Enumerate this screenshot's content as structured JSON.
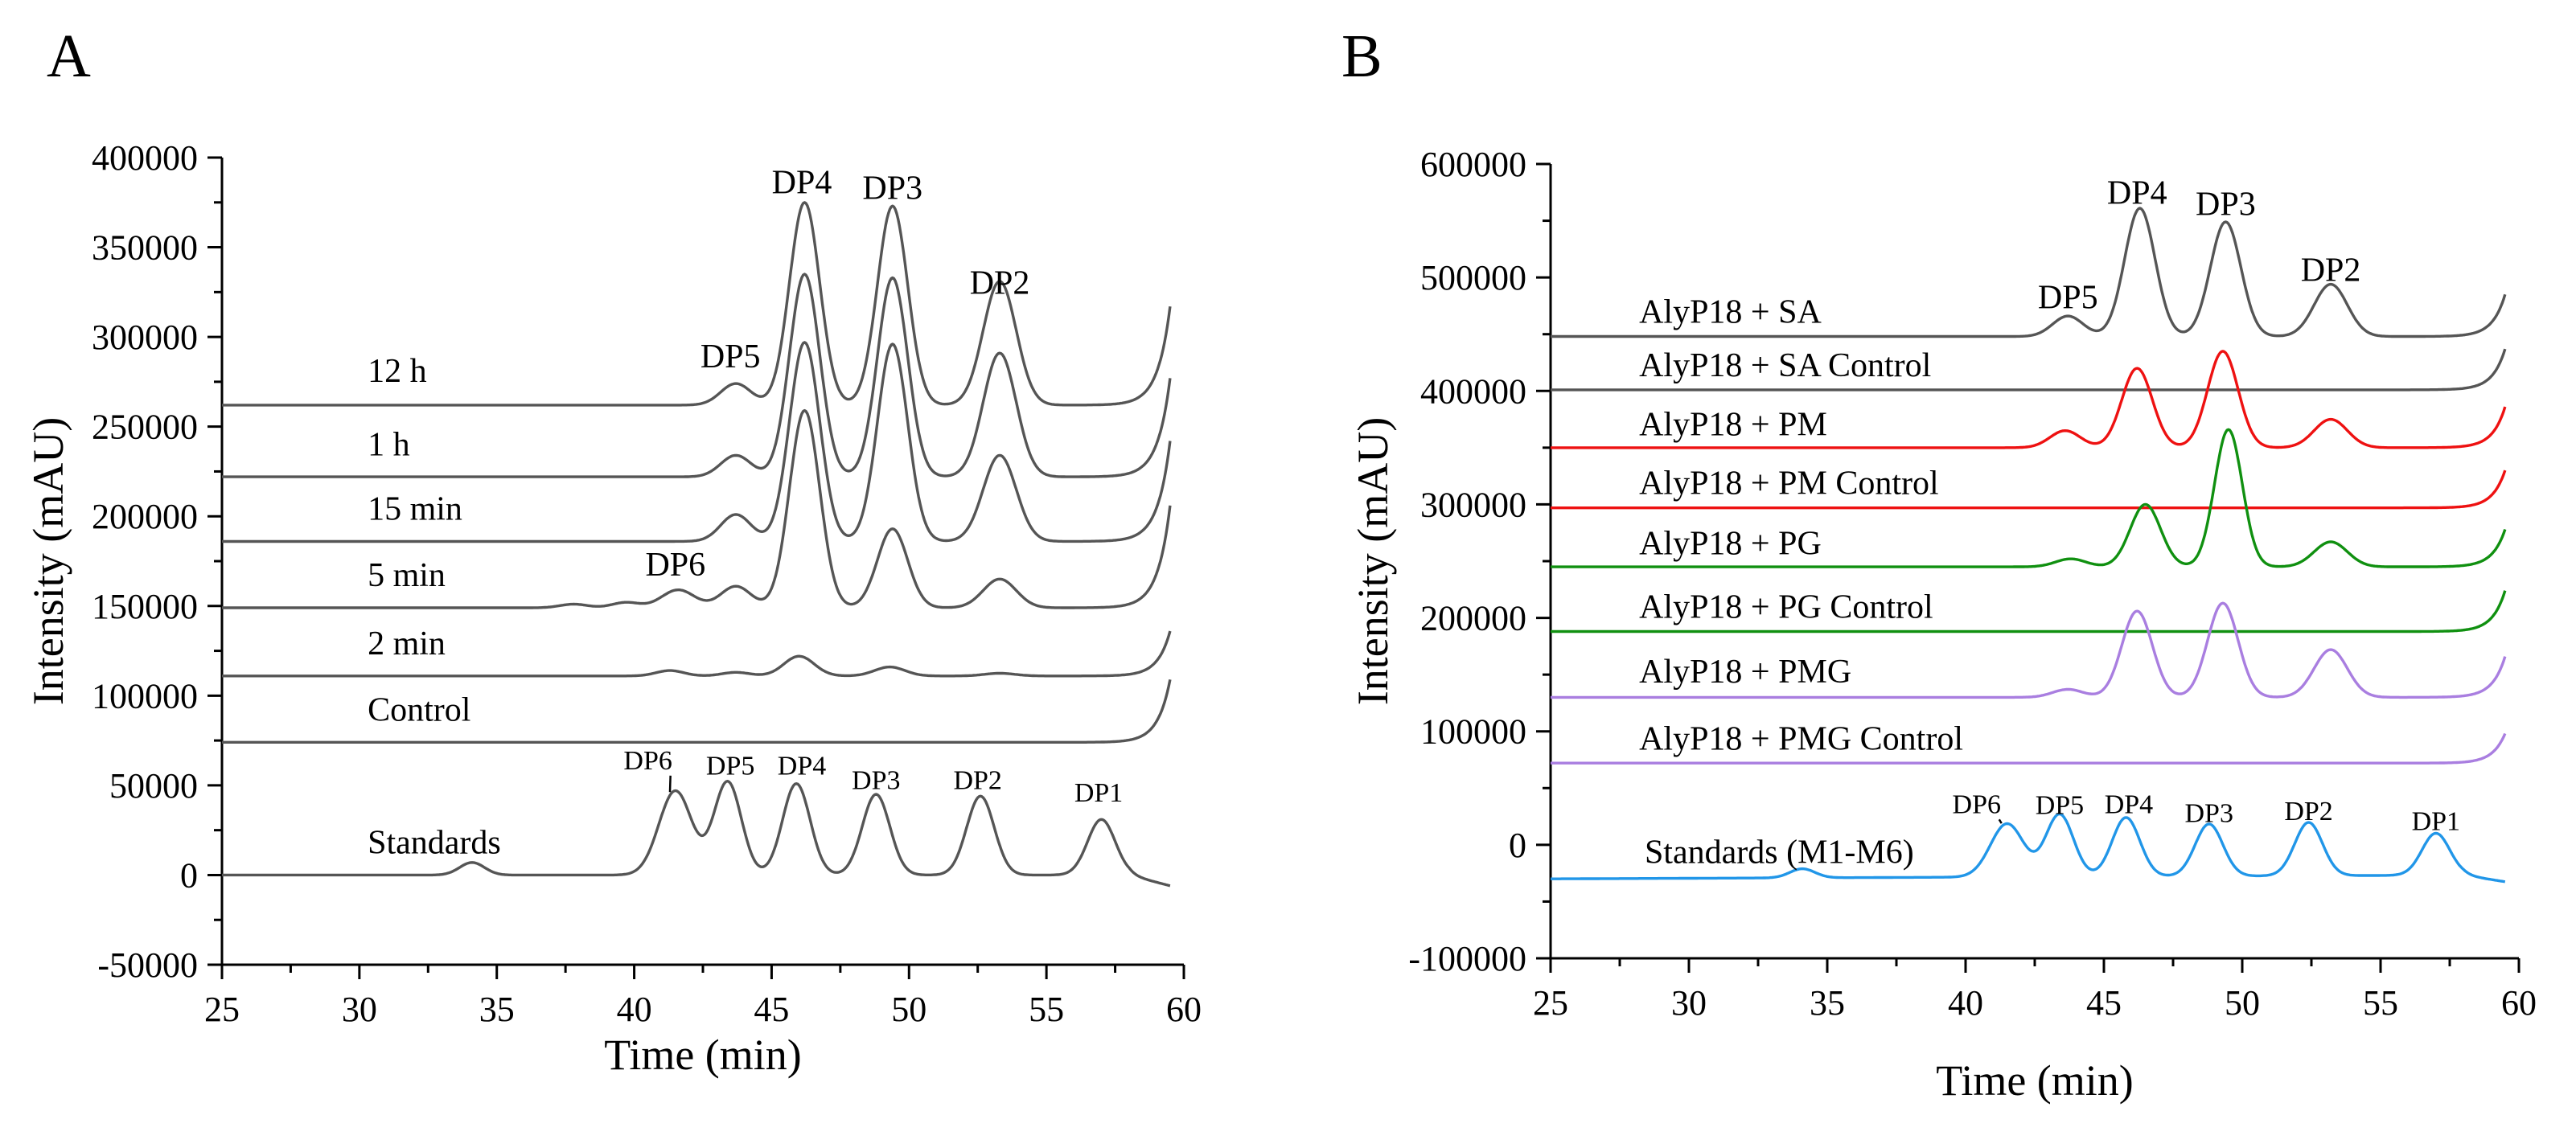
{
  "panels": [
    "A",
    "B"
  ],
  "chart_data": [
    {
      "panel": "A",
      "type": "line",
      "xlabel": "Time (min)",
      "ylabel": "Intensity (mAU)",
      "xlim": [
        25,
        60
      ],
      "ylim": [
        -50000,
        400000
      ],
      "xticks": [
        25,
        30,
        35,
        40,
        45,
        50,
        55,
        60
      ],
      "yticks": [
        -50000,
        0,
        50000,
        100000,
        150000,
        200000,
        250000,
        300000,
        350000,
        400000
      ],
      "x_tick_labels": [
        "25",
        "30",
        "35",
        "40",
        "45",
        "50",
        "55",
        "60"
      ],
      "y_tick_labels": [
        "-50000",
        "0",
        "50000",
        "100000",
        "150000",
        "200000",
        "250000",
        "300000",
        "350000",
        "400000"
      ],
      "series": [
        {
          "name": "12 h",
          "color": "#555555",
          "baseline": 262000,
          "end_rise": 55000,
          "peaks": [
            [
              43.7,
              12000,
              0.55
            ],
            [
              46.2,
              113000,
              0.55
            ],
            [
              49.4,
              111000,
              0.55
            ],
            [
              53.3,
              69000,
              0.6
            ]
          ]
        },
        {
          "name": "1 h",
          "color": "#555555",
          "baseline": 222000,
          "end_rise": 55000,
          "peaks": [
            [
              43.7,
              12000,
              0.55
            ],
            [
              46.2,
              113000,
              0.55
            ],
            [
              49.4,
              111000,
              0.55
            ],
            [
              53.3,
              69000,
              0.6
            ]
          ]
        },
        {
          "name": "15 min",
          "color": "#555555",
          "baseline": 186000,
          "end_rise": 56000,
          "peaks": [
            [
              43.7,
              15000,
              0.55
            ],
            [
              46.2,
              111000,
              0.55
            ],
            [
              49.4,
              110000,
              0.55
            ],
            [
              53.3,
              48000,
              0.6
            ]
          ]
        },
        {
          "name": "5 min",
          "color": "#555555",
          "baseline": 149000,
          "end_rise": 57000,
          "peaks": [
            [
              37.8,
              2000,
              0.5
            ],
            [
              39.7,
              3000,
              0.5
            ],
            [
              41.6,
              10000,
              0.6
            ],
            [
              43.7,
              12000,
              0.55
            ],
            [
              46.2,
              110000,
              0.55
            ],
            [
              49.4,
              44000,
              0.55
            ],
            [
              53.3,
              16000,
              0.6
            ]
          ]
        },
        {
          "name": "2 min",
          "color": "#555555",
          "baseline": 111000,
          "end_rise": 25000,
          "peaks": [
            [
              41.3,
              3000,
              0.5
            ],
            [
              43.7,
              2000,
              0.5
            ],
            [
              46.0,
              11000,
              0.55
            ],
            [
              49.3,
              5000,
              0.55
            ],
            [
              53.3,
              1500,
              0.55
            ]
          ]
        },
        {
          "name": "Control",
          "color": "#555555",
          "baseline": 74000,
          "end_rise": 35000,
          "peaks": []
        },
        {
          "name": "Standards",
          "color": "#555555",
          "baseline": 0,
          "end_rise": 0,
          "end_drop": 2000,
          "peaks": [
            [
              34.1,
              7000,
              0.45
            ],
            [
              41.5,
              47000,
              0.6
            ],
            [
              43.4,
              52000,
              0.5
            ],
            [
              45.9,
              51000,
              0.5
            ],
            [
              48.8,
              45000,
              0.5
            ],
            [
              52.6,
              44000,
              0.5
            ],
            [
              57.0,
              31000,
              0.5
            ]
          ]
        }
      ],
      "trace_labels": [
        {
          "text": "12 h",
          "x": 30.3,
          "y": 275000
        },
        {
          "text": "1 h",
          "x": 30.3,
          "y": 234000
        },
        {
          "text": "15 min",
          "x": 30.3,
          "y": 198000
        },
        {
          "text": "5 min",
          "x": 30.3,
          "y": 161000
        },
        {
          "text": "2 min",
          "x": 30.3,
          "y": 123000
        },
        {
          "text": "Control",
          "x": 30.3,
          "y": 86000
        },
        {
          "text": "Standards",
          "x": 30.3,
          "y": 12000
        }
      ],
      "peak_labels": [
        {
          "text": "DP4",
          "x": 46.1,
          "y": 380000
        },
        {
          "text": "DP3",
          "x": 49.4,
          "y": 377000
        },
        {
          "text": "DP2",
          "x": 53.3,
          "y": 324000
        },
        {
          "text": "DP5",
          "x": 43.5,
          "y": 283000
        },
        {
          "text": "DP6",
          "x": 41.5,
          "y": 167000
        }
      ],
      "standard_peak_labels": [
        {
          "text": "DP6",
          "x": 40.5,
          "y": 59000
        },
        {
          "text": "DP5",
          "x": 43.5,
          "y": 56000
        },
        {
          "text": "DP4",
          "x": 46.1,
          "y": 56000
        },
        {
          "text": "DP3",
          "x": 48.8,
          "y": 48000
        },
        {
          "text": "DP2",
          "x": 52.5,
          "y": 48000
        },
        {
          "text": "DP1",
          "x": 56.9,
          "y": 41000
        }
      ]
    },
    {
      "panel": "B",
      "type": "line",
      "xlabel": "Time (min)",
      "ylabel": "Intensity (mAU)",
      "xlim": [
        25,
        60
      ],
      "ylim": [
        -100000,
        600000
      ],
      "xticks": [
        25,
        30,
        35,
        40,
        45,
        50,
        55,
        60
      ],
      "yticks": [
        -100000,
        0,
        100000,
        200000,
        300000,
        400000,
        500000,
        600000
      ],
      "x_tick_labels": [
        "25",
        "30",
        "35",
        "40",
        "45",
        "50",
        "55",
        "60"
      ],
      "y_tick_labels": [
        "-100000",
        "0",
        "100000",
        "200000",
        "300000",
        "400000",
        "500000",
        "600000"
      ],
      "series": [
        {
          "name": "AlyP18 + SA",
          "color": "#555555",
          "baseline": 448000,
          "end_rise": 37000,
          "peaks": [
            [
              43.7,
              18000,
              0.55
            ],
            [
              46.3,
              113000,
              0.55
            ],
            [
              49.4,
              101000,
              0.55
            ],
            [
              53.2,
              46000,
              0.6
            ]
          ]
        },
        {
          "name": "AlyP18 + SA Control",
          "color": "#555555",
          "baseline": 401000,
          "end_rise": 36000,
          "peaks": []
        },
        {
          "name": "AlyP18 + PM",
          "color": "#ee1111",
          "baseline": 350000,
          "end_rise": 36000,
          "peaks": [
            [
              43.6,
              15000,
              0.55
            ],
            [
              46.2,
              70000,
              0.55
            ],
            [
              49.3,
              85000,
              0.55
            ],
            [
              53.2,
              25000,
              0.6
            ]
          ]
        },
        {
          "name": "AlyP18 + PM Control",
          "color": "#ee1111",
          "baseline": 297000,
          "end_rise": 33000,
          "peaks": []
        },
        {
          "name": "AlyP18 + PG",
          "color": "#109010",
          "baseline": 245000,
          "end_rise": 33000,
          "peaks": [
            [
              43.8,
              7000,
              0.55
            ],
            [
              46.5,
              55000,
              0.55
            ],
            [
              49.5,
              121000,
              0.5
            ],
            [
              53.2,
              22000,
              0.6
            ]
          ]
        },
        {
          "name": "AlyP18 + PG Control",
          "color": "#109010",
          "baseline": 188000,
          "end_rise": 36000,
          "peaks": []
        },
        {
          "name": "AlyP18 + PMG",
          "color": "#a97ee0",
          "baseline": 130000,
          "end_rise": 36000,
          "peaks": [
            [
              43.7,
              7000,
              0.55
            ],
            [
              46.2,
              76000,
              0.55
            ],
            [
              49.3,
              83000,
              0.55
            ],
            [
              53.2,
              42000,
              0.6
            ]
          ]
        },
        {
          "name": "AlyP18 + PMG Control",
          "color": "#a97ee0",
          "baseline": 72000,
          "end_rise": 26000,
          "peaks": []
        },
        {
          "name": "Standards (M1-M6)",
          "color": "#2196e8",
          "baseline": -30000,
          "end_rise": 0,
          "end_drop": 2000,
          "drift": 3500,
          "peaks": [
            [
              34.1,
              8000,
              0.45
            ],
            [
              41.5,
              47000,
              0.6
            ],
            [
              43.4,
              55000,
              0.5
            ],
            [
              45.8,
              52000,
              0.5
            ],
            [
              48.8,
              46000,
              0.5
            ],
            [
              52.4,
              47000,
              0.5
            ],
            [
              57.0,
              37000,
              0.5
            ]
          ]
        }
      ],
      "trace_labels": [
        {
          "text": "AlyP18 + SA",
          "x": 28.2,
          "y": 460000
        },
        {
          "text": "AlyP18 + SA Control",
          "x": 28.2,
          "y": 413000
        },
        {
          "text": "AlyP18 + PM",
          "x": 28.2,
          "y": 361000
        },
        {
          "text": "AlyP18 + PM Control",
          "x": 28.2,
          "y": 309000
        },
        {
          "text": "AlyP18 + PG",
          "x": 28.2,
          "y": 256000
        },
        {
          "text": "AlyP18 + PG Control",
          "x": 28.2,
          "y": 200000
        },
        {
          "text": "AlyP18 + PMG",
          "x": 28.2,
          "y": 143000
        },
        {
          "text": "AlyP18 + PMG Control",
          "x": 28.2,
          "y": 84000
        },
        {
          "text": "Standards (M1-M6)",
          "x": 28.4,
          "y": -16000
        }
      ],
      "peak_labels": [
        {
          "text": "DP4",
          "x": 46.2,
          "y": 565000
        },
        {
          "text": "DP3",
          "x": 49.4,
          "y": 555000
        },
        {
          "text": "DP2",
          "x": 53.2,
          "y": 497000
        },
        {
          "text": "DP5",
          "x": 43.7,
          "y": 473000
        }
      ],
      "standard_peak_labels": [
        {
          "text": "DP6",
          "x": 40.4,
          "y": 28000
        },
        {
          "text": "DP5",
          "x": 43.4,
          "y": 27000
        },
        {
          "text": "DP4",
          "x": 45.9,
          "y": 28000
        },
        {
          "text": "DP3",
          "x": 48.8,
          "y": 20000
        },
        {
          "text": "DP2",
          "x": 52.4,
          "y": 22000
        },
        {
          "text": "DP1",
          "x": 57.0,
          "y": 13000
        }
      ]
    }
  ]
}
